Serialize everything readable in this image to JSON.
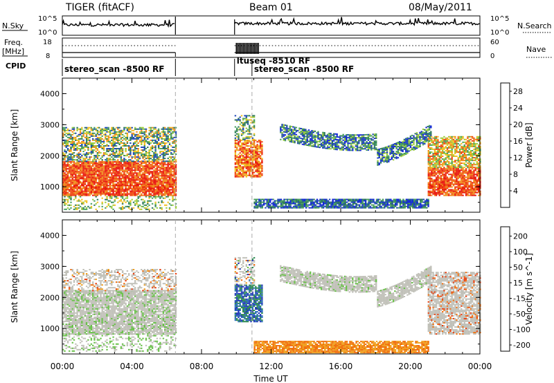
{
  "header": {
    "radar": "TIGER (fitACF)",
    "beam": "Beam 01",
    "date": "08/May/2011"
  },
  "strip_labels": {
    "nsky": "N.Sky",
    "nsky_ticks": [
      "10^5",
      "10^0"
    ],
    "nsearch": "N.Search",
    "nsearch_ticks": [
      "10^5",
      "10^0"
    ],
    "freq_line1": "Freq.",
    "freq_line2": "[MHz]",
    "freq_ticks": [
      "18",
      "8"
    ],
    "nave": "Nave",
    "nave_ticks": [
      "60",
      "0"
    ],
    "cpid": "CPID"
  },
  "cpid_segments": [
    {
      "label": "stereo_scan -8500 RF",
      "start_hour": 0.0
    },
    {
      "label": "ltuseq -8510 RF",
      "start_hour": 9.9
    },
    {
      "label": "stereo_scan -8500 RF",
      "start_hour": 10.9
    }
  ],
  "colors": {
    "power_scale": [
      "#1428d8",
      "#2048b8",
      "#2e7a5a",
      "#4aa060",
      "#9ccc3c",
      "#f0c020",
      "#f08c1c",
      "#f04a14",
      "#e8160c"
    ],
    "velocity_scale": [
      "#2438b8",
      "#2c6cbc",
      "#2c8a50",
      "#68c048",
      "#c8c8c0",
      "#c8c8c0",
      "#f0a020",
      "#f07010",
      "#e84010",
      "#e01010"
    ],
    "ground_scatter": "#c0c0b8"
  },
  "chart_data": [
    {
      "type": "heatmap",
      "title": "",
      "xlabel": "Time UT",
      "ylabel": "Slant Range [km]",
      "x_ticks": [
        "00:00",
        "04:00",
        "08:00",
        "12:00",
        "16:00",
        "20:00",
        "00:00"
      ],
      "y_ticks": [
        "1000",
        "2000",
        "3000",
        "4000"
      ],
      "xlim_hours": [
        0,
        24
      ],
      "ylim_km": [
        180,
        4500
      ],
      "colorbar": {
        "label": "Power [dB]",
        "ticks": [
          "4",
          "8",
          "12",
          "16",
          "20",
          "24",
          "28"
        ],
        "range": [
          0,
          30
        ]
      },
      "data_gaps_hours": [
        [
          6.5,
          9.9
        ]
      ],
      "features": [
        {
          "name": "strong echoes early",
          "hours": [
            0.0,
            6.5
          ],
          "range_km": [
            800,
            1800
          ],
          "power_db": 28
        },
        {
          "name": "mid echoes early",
          "hours": [
            0.0,
            6.5
          ],
          "range_km": [
            1800,
            2800
          ],
          "power_db": 16
        },
        {
          "name": "strong echoes ltuseq",
          "hours": [
            10.0,
            11.5
          ],
          "range_km": [
            1400,
            2500
          ],
          "power_db": 26
        },
        {
          "name": "weak band near ground",
          "hours": [
            11.0,
            21.0
          ],
          "range_km": [
            300,
            600
          ],
          "power_db": 6
        },
        {
          "name": "weak arc",
          "hours": [
            11.0,
            21.0
          ],
          "range_km": [
            1400,
            3200
          ],
          "power_db": 10
        },
        {
          "name": "strong echoes late",
          "hours": [
            21.0,
            24.0
          ],
          "range_km": [
            700,
            2600
          ],
          "power_db": 26
        }
      ]
    },
    {
      "type": "heatmap",
      "title": "",
      "xlabel": "Time UT",
      "ylabel": "Slant Range [km]",
      "x_ticks": [
        "00:00",
        "04:00",
        "08:00",
        "12:00",
        "16:00",
        "20:00",
        "00:00"
      ],
      "y_ticks": [
        "1000",
        "2000",
        "3000",
        "4000"
      ],
      "xlim_hours": [
        0,
        24
      ],
      "ylim_km": [
        180,
        4500
      ],
      "colorbar": {
        "label": "Velocity [m s^-1]",
        "ticks": [
          "200",
          "100",
          "50",
          "15",
          "-15",
          "-50",
          "-100",
          "-200"
        ],
        "range": [
          -250,
          250
        ]
      },
      "data_gaps_hours": [
        [
          6.5,
          9.9
        ]
      ],
      "features": [
        {
          "name": "ground scatter early",
          "hours": [
            0.0,
            6.5
          ],
          "range_km": [
            800,
            2200
          ],
          "velocity": 0
        },
        {
          "name": "ltuseq toward",
          "hours": [
            10.0,
            11.5
          ],
          "range_km": [
            1200,
            2400
          ],
          "velocity": 150
        },
        {
          "name": "ground scatter arc",
          "hours": [
            11.0,
            21.5
          ],
          "range_km": [
            1400,
            3200
          ],
          "velocity": 0
        },
        {
          "name": "away band near ground",
          "hours": [
            11.0,
            21.0
          ],
          "range_km": [
            200,
            600
          ],
          "velocity": -60
        },
        {
          "name": "ground scatter late",
          "hours": [
            21.0,
            24.0
          ],
          "range_km": [
            800,
            2800
          ],
          "velocity": 0
        }
      ]
    }
  ]
}
